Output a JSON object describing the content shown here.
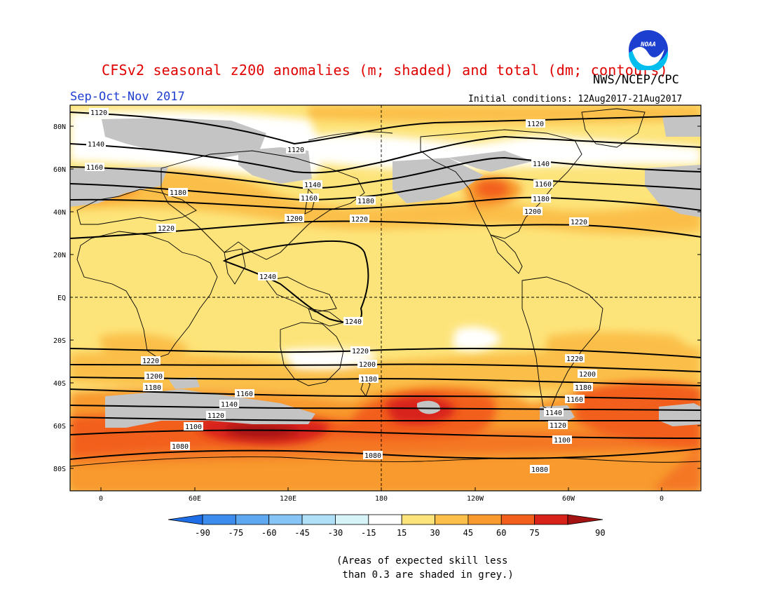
{
  "header": {
    "title": "CFSv2 seasonal z200 anomalies (m; shaded) and total (dm; contours)",
    "agency": "NWS/NCEP/CPC",
    "season": "Sep-Oct-Nov 2017",
    "initial_conditions": "Initial conditions: 12Aug2017-21Aug2017",
    "logo_text": "NOAA"
  },
  "map": {
    "lat_labels": [
      "80N",
      "60N",
      "40N",
      "20N",
      "EQ",
      "20S",
      "40S",
      "60S",
      "80S"
    ],
    "lon_labels": [
      "0",
      "60E",
      "120E",
      "180",
      "120W",
      "60W",
      "0"
    ],
    "contour_labels": [
      {
        "value": "1120",
        "note": "arctic"
      },
      {
        "value": "1140"
      },
      {
        "value": "1160"
      },
      {
        "value": "1180"
      },
      {
        "value": "1200"
      },
      {
        "value": "1220"
      },
      {
        "value": "1240"
      },
      {
        "value": "1100"
      },
      {
        "value": "1080"
      }
    ],
    "contour_label_texts": [
      "1120",
      "1140",
      "1160",
      "1180",
      "1220",
      "1120",
      "1140",
      "1160",
      "1180",
      "1200",
      "1220",
      "1120",
      "1140",
      "1160",
      "1180",
      "1200",
      "1220",
      "1240",
      "1240",
      "1220",
      "1200",
      "1180",
      "1220",
      "1200",
      "1180",
      "1160",
      "1140",
      "1120",
      "1100",
      "1080",
      "1220",
      "1200",
      "1180",
      "1160",
      "1140",
      "1120",
      "1100",
      "1080",
      "1080"
    ],
    "colors": {
      "pos15": "#fde47a",
      "pos30": "#fbbf4a",
      "pos45": "#f89a2e",
      "pos60": "#f25f1c",
      "pos75": "#d8231a",
      "pos90": "#a51212",
      "neutral": "#ffffff",
      "low_skill_grey": "#c4c4c4"
    }
  },
  "colorbar": {
    "ticks": [
      "-90",
      "-75",
      "-60",
      "-45",
      "-30",
      "-15",
      "15",
      "30",
      "45",
      "60",
      "75",
      "90"
    ],
    "colors": [
      "#1e6ee8",
      "#3c8cee",
      "#5ea8f2",
      "#86c4f6",
      "#b0dff8",
      "#d6f4f8",
      "#ffffff",
      "#fde47a",
      "#fbbf4a",
      "#f89a2e",
      "#f25f1c",
      "#d8231a",
      "#a51212"
    ]
  },
  "footnote": {
    "line1": "(Areas of expected skill less",
    "line2": " than 0.3 are shaded in grey.)"
  }
}
